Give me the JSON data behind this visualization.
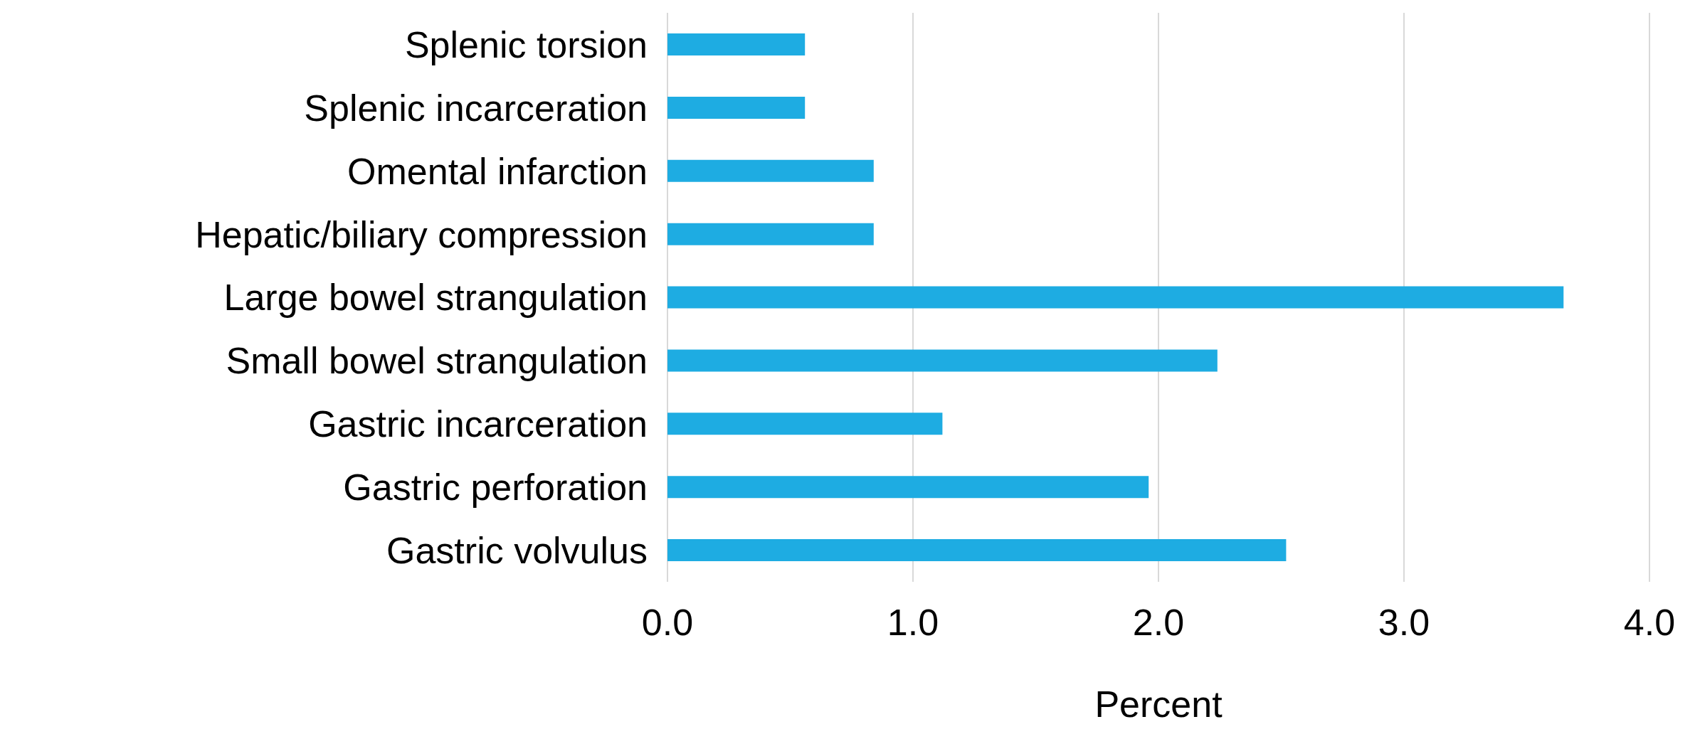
{
  "chart_data": {
    "type": "bar",
    "orientation": "horizontal",
    "xlabel": "Percent",
    "categories": [
      "Splenic torsion",
      "Splenic incarceration",
      "Omental infarction",
      "Hepatic/biliary compression",
      "Large bowel strangulation",
      "Small bowel strangulation",
      "Gastric incarceration",
      "Gastric perforation",
      "Gastric volvulus"
    ],
    "values": [
      0.56,
      0.56,
      0.84,
      0.84,
      3.65,
      2.24,
      1.12,
      1.96,
      2.52
    ],
    "color": "#1eace2",
    "xlim": [
      0,
      4
    ],
    "xticks": [
      {
        "value": 0,
        "label": "0.0"
      },
      {
        "value": 1,
        "label": "1.0"
      },
      {
        "value": 2,
        "label": "2.0"
      },
      {
        "value": 3,
        "label": "3.0"
      },
      {
        "value": 4,
        "label": "4.0"
      }
    ],
    "grid": "x"
  }
}
